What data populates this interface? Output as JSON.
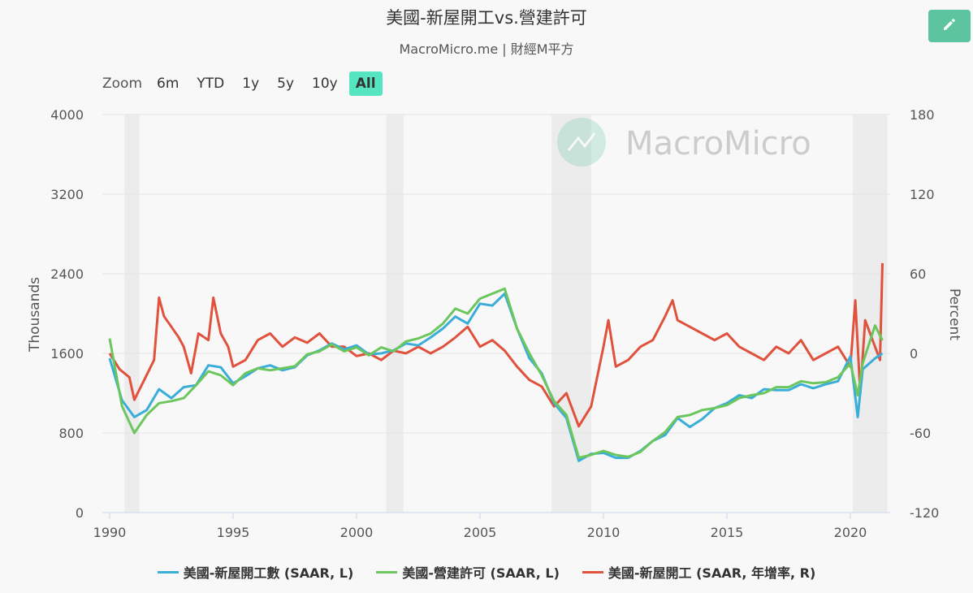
{
  "title": "美國-新屋開工vs.營建許可",
  "subtitle": "MacroMicro.me | 財經M平方",
  "watermark": "MacroMicro",
  "edit_icon": "pencil-icon",
  "zoom": {
    "label": "Zoom",
    "buttons": [
      "6m",
      "YTD",
      "1y",
      "5y",
      "10y",
      "All"
    ],
    "active": "All"
  },
  "chart_data": {
    "type": "line",
    "x_ticks": [
      "1990",
      "1995",
      "2000",
      "2005",
      "2010",
      "2015",
      "2020"
    ],
    "y_left": {
      "label": "Thousands",
      "range": [
        0,
        4000
      ],
      "ticks": [
        "0",
        "800",
        "1600",
        "2400",
        "3200",
        "4000"
      ]
    },
    "y_right": {
      "label": "Percent",
      "range": [
        -120,
        180
      ],
      "ticks": [
        "-120",
        "-60",
        "0",
        "60",
        "120",
        "180"
      ]
    },
    "recessions": [
      [
        1990.6,
        1991.2
      ],
      [
        2001.2,
        2001.9
      ],
      [
        2007.9,
        2009.5
      ],
      [
        2020.1,
        2021.5
      ]
    ],
    "grid": true,
    "legend_position": "bottom",
    "series": [
      {
        "name": "美國-新屋開工數 (SAAR, L)",
        "axis": "left",
        "color": "#3aaed8",
        "x": [
          1990.0,
          1990.5,
          1991.0,
          1991.5,
          1992.0,
          1992.5,
          1993.0,
          1993.5,
          1994.0,
          1994.5,
          1995.0,
          1995.5,
          1996.0,
          1996.5,
          1997.0,
          1997.5,
          1998.0,
          1998.5,
          1999.0,
          1999.5,
          2000.0,
          2000.5,
          2001.0,
          2001.5,
          2002.0,
          2002.5,
          2003.0,
          2003.5,
          2004.0,
          2004.5,
          2005.0,
          2005.5,
          2006.0,
          2006.5,
          2007.0,
          2007.5,
          2008.0,
          2008.5,
          2009.0,
          2009.5,
          2010.0,
          2010.5,
          2011.0,
          2011.5,
          2012.0,
          2012.5,
          2013.0,
          2013.5,
          2014.0,
          2014.5,
          2015.0,
          2015.5,
          2016.0,
          2016.5,
          2017.0,
          2017.5,
          2018.0,
          2018.5,
          2019.0,
          2019.5,
          2020.0,
          2020.3,
          2020.5,
          2021.0,
          2021.3
        ],
        "y": [
          1550,
          1130,
          960,
          1030,
          1240,
          1150,
          1260,
          1280,
          1480,
          1460,
          1300,
          1370,
          1450,
          1480,
          1430,
          1460,
          1580,
          1630,
          1700,
          1640,
          1680,
          1590,
          1600,
          1630,
          1700,
          1680,
          1760,
          1850,
          1970,
          1900,
          2100,
          2080,
          2200,
          1850,
          1550,
          1400,
          1100,
          950,
          520,
          590,
          600,
          550,
          550,
          620,
          720,
          780,
          950,
          860,
          940,
          1050,
          1100,
          1180,
          1150,
          1240,
          1230,
          1230,
          1290,
          1250,
          1290,
          1320,
          1570,
          960,
          1440,
          1550,
          1600
        ]
      },
      {
        "name": "美國-營建許可 (SAAR, L)",
        "axis": "left",
        "color": "#6cc65e",
        "x": [
          1990.0,
          1990.5,
          1991.0,
          1991.5,
          1992.0,
          1992.5,
          1993.0,
          1993.5,
          1994.0,
          1994.5,
          1995.0,
          1995.5,
          1996.0,
          1996.5,
          1997.0,
          1997.5,
          1998.0,
          1998.5,
          1999.0,
          1999.5,
          2000.0,
          2000.5,
          2001.0,
          2001.5,
          2002.0,
          2002.5,
          2003.0,
          2003.5,
          2004.0,
          2004.5,
          2005.0,
          2005.5,
          2006.0,
          2006.5,
          2007.0,
          2007.5,
          2008.0,
          2008.5,
          2009.0,
          2009.5,
          2010.0,
          2010.5,
          2011.0,
          2011.5,
          2012.0,
          2012.5,
          2013.0,
          2013.5,
          2014.0,
          2014.5,
          2015.0,
          2015.5,
          2016.0,
          2016.5,
          2017.0,
          2017.5,
          2018.0,
          2018.5,
          2019.0,
          2019.5,
          2020.0,
          2020.3,
          2020.5,
          2021.0,
          2021.3
        ],
        "y": [
          1750,
          1070,
          800,
          980,
          1100,
          1120,
          1150,
          1280,
          1420,
          1380,
          1280,
          1400,
          1450,
          1430,
          1450,
          1470,
          1590,
          1620,
          1690,
          1620,
          1660,
          1580,
          1660,
          1620,
          1720,
          1750,
          1800,
          1900,
          2050,
          2000,
          2150,
          2200,
          2250,
          1850,
          1600,
          1380,
          1120,
          980,
          550,
          580,
          620,
          580,
          560,
          610,
          720,
          810,
          960,
          980,
          1030,
          1050,
          1080,
          1150,
          1180,
          1200,
          1260,
          1260,
          1320,
          1300,
          1310,
          1360,
          1500,
          1180,
          1500,
          1880,
          1730
        ]
      },
      {
        "name": "美國-新屋開工 (SAAR, 年增率, R)",
        "axis": "right",
        "color": "#e0523d",
        "x": [
          1990.0,
          1990.4,
          1990.8,
          1991.0,
          1991.4,
          1991.8,
          1992.0,
          1992.2,
          1992.5,
          1992.8,
          1993.0,
          1993.3,
          1993.6,
          1994.0,
          1994.2,
          1994.5,
          1994.8,
          1995.0,
          1995.5,
          1996.0,
          1996.5,
          1997.0,
          1997.5,
          1998.0,
          1998.5,
          1999.0,
          1999.5,
          2000.0,
          2000.5,
          2001.0,
          2001.5,
          2002.0,
          2002.5,
          2003.0,
          2003.5,
          2004.0,
          2004.5,
          2005.0,
          2005.5,
          2006.0,
          2006.5,
          2007.0,
          2007.5,
          2008.0,
          2008.5,
          2009.0,
          2009.5,
          2010.0,
          2010.2,
          2010.5,
          2011.0,
          2011.5,
          2012.0,
          2012.5,
          2012.8,
          2013.0,
          2013.5,
          2014.0,
          2014.5,
          2015.0,
          2015.5,
          2016.0,
          2016.5,
          2017.0,
          2017.5,
          2018.0,
          2018.5,
          2019.0,
          2019.5,
          2020.0,
          2020.2,
          2020.4,
          2020.6,
          2021.0,
          2021.2,
          2021.3
        ],
        "y": [
          0,
          -12,
          -18,
          -35,
          -20,
          -5,
          42,
          28,
          20,
          12,
          5,
          -15,
          15,
          10,
          42,
          15,
          5,
          -10,
          -5,
          10,
          15,
          5,
          12,
          8,
          15,
          5,
          5,
          -2,
          0,
          -5,
          2,
          0,
          5,
          0,
          5,
          12,
          20,
          5,
          10,
          2,
          -10,
          -20,
          -25,
          -40,
          -30,
          -55,
          -40,
          5,
          25,
          -10,
          -5,
          5,
          10,
          28,
          40,
          25,
          20,
          15,
          10,
          15,
          5,
          0,
          -5,
          5,
          0,
          10,
          -5,
          0,
          5,
          -10,
          40,
          -30,
          25,
          5,
          -5,
          68
        ]
      }
    ]
  }
}
